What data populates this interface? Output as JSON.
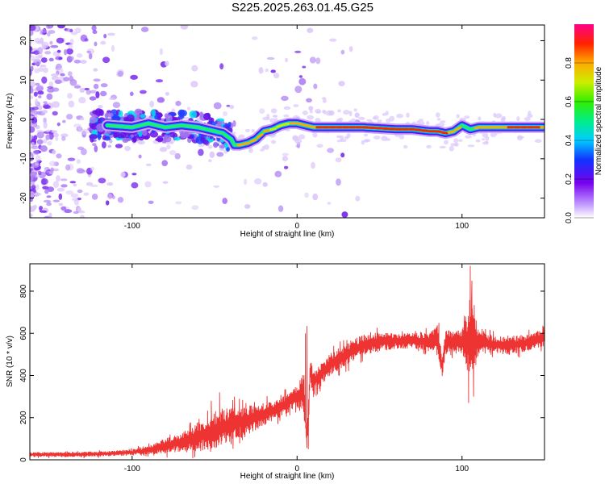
{
  "title": "S225.2025.263.01.45.G25",
  "chart_data": [
    {
      "type": "heatmap",
      "xlabel": "Height of straight line (km)",
      "ylabel": "Frequency (Hz)",
      "xlim": [
        -162,
        150
      ],
      "ylim": [
        -25,
        24
      ],
      "xticks": [
        -100,
        0,
        100
      ],
      "yticks": [
        20,
        10,
        0,
        -10,
        -20
      ],
      "colorbar": {
        "label": "Normalized spectral amplitude",
        "ticks": [
          0.0,
          0.2,
          0.4,
          0.6,
          0.8
        ],
        "range": [
          0,
          1
        ]
      },
      "ridge": {
        "x": [
          -115,
          -100,
          -90,
          -80,
          -70,
          -60,
          -50,
          -45,
          -40,
          -38,
          -35,
          -30,
          -25,
          -20,
          -15,
          -10,
          -5,
          0,
          5,
          10,
          20,
          40,
          60,
          70,
          80,
          85,
          90,
          95,
          100,
          105,
          110,
          120,
          130,
          150
        ],
        "freq": [
          -1.5,
          -2,
          -1,
          -2,
          -1.5,
          -2,
          -3,
          -3.5,
          -5,
          -6.5,
          -6.5,
          -6,
          -5,
          -3,
          -2.5,
          -1.5,
          -1,
          -1,
          -1.5,
          -2,
          -2,
          -2,
          -2.5,
          -2.5,
          -3,
          -3,
          -3.5,
          -3,
          -1.5,
          -2.5,
          -2,
          -2,
          -2,
          -2
        ],
        "amplitude": [
          0.35,
          0.45,
          0.4,
          0.5,
          0.45,
          0.45,
          0.4,
          0.5,
          0.7,
          0.85,
          0.9,
          0.85,
          0.8,
          0.8,
          0.75,
          0.8,
          0.85,
          0.85,
          0.9,
          0.9,
          0.95,
          0.95,
          0.95,
          0.95,
          0.95,
          0.9,
          0.9,
          0.8,
          0.7,
          0.75,
          0.85,
          0.9,
          0.9,
          0.9
        ]
      }
    },
    {
      "type": "line",
      "xlabel": "Height of straight line (km)",
      "ylabel": "SNR (10 * v/v)",
      "xlim": [
        -162,
        150
      ],
      "ylim": [
        0,
        930
      ],
      "xticks": [
        -100,
        0,
        100
      ],
      "yticks": [
        0,
        200,
        400,
        600,
        800
      ],
      "series": [
        {
          "name": "SNR",
          "color": "#ee3333",
          "x": [
            -162,
            -140,
            -120,
            -100,
            -90,
            -80,
            -70,
            -60,
            -50,
            -40,
            -30,
            -20,
            -10,
            0,
            4,
            6,
            8,
            10,
            20,
            30,
            40,
            50,
            60,
            70,
            80,
            85,
            88,
            90,
            100,
            104,
            106,
            108,
            110,
            120,
            130,
            140,
            150
          ],
          "mean": [
            25,
            25,
            28,
            35,
            45,
            65,
            85,
            110,
            140,
            165,
            190,
            215,
            245,
            300,
            320,
            70,
            420,
            370,
            450,
            500,
            545,
            560,
            565,
            565,
            560,
            580,
            440,
            560,
            560,
            560,
            610,
            560,
            560,
            545,
            545,
            555,
            580
          ],
          "spread": [
            12,
            12,
            12,
            15,
            20,
            35,
            45,
            70,
            90,
            80,
            70,
            55,
            45,
            50,
            120,
            20,
            70,
            50,
            55,
            55,
            50,
            45,
            40,
            40,
            45,
            60,
            60,
            60,
            55,
            180,
            200,
            120,
            60,
            45,
            45,
            40,
            40
          ],
          "spikes": [
            {
              "x": 6,
              "y": 635
            },
            {
              "x": 6.8,
              "y": 50
            },
            {
              "x": 5,
              "y": 600
            },
            {
              "x": 105,
              "y": 920
            },
            {
              "x": 104,
              "y": 270
            },
            {
              "x": 106,
              "y": 850
            },
            {
              "x": 107,
              "y": 300
            },
            {
              "x": 86,
              "y": 650
            },
            {
              "x": 87,
              "y": 440
            },
            {
              "x": -47,
              "y": 320
            },
            {
              "x": -52,
              "y": 280
            },
            {
              "x": -38,
              "y": 300
            }
          ]
        }
      ]
    }
  ]
}
